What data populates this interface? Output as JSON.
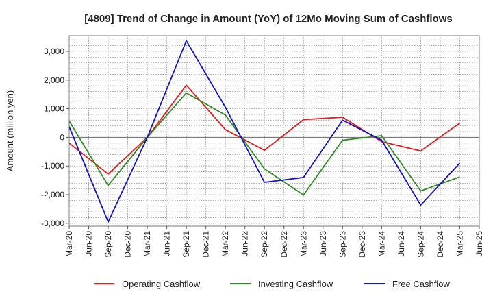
{
  "chart_data": {
    "type": "line",
    "title": "[4809]  Trend of Change in Amount (YoY) of 12Mo Moving Sum of Cashflows",
    "xlabel": "",
    "ylabel": "Amount (million yen)",
    "ylim": [
      -3100,
      3550
    ],
    "yticks": [
      3000,
      2000,
      1000,
      0,
      -1000,
      -2000,
      -3000
    ],
    "ytick_labels": [
      "3,000",
      "2,000",
      "1,000",
      "0",
      "-1,000",
      "-2,000",
      "-3,000"
    ],
    "categories": [
      "Mar-20",
      "Jun-20",
      "Sep-20",
      "Dec-20",
      "Mar-21",
      "Jun-21",
      "Sep-21",
      "Dec-21",
      "Mar-22",
      "Jun-22",
      "Sep-22",
      "Dec-22",
      "Mar-23",
      "Jun-23",
      "Sep-23",
      "Dec-23",
      "Mar-24",
      "Jun-24",
      "Sep-24",
      "Dec-24",
      "Mar-25",
      "Jun-25"
    ],
    "grid": true,
    "legend_position": "bottom",
    "series": [
      {
        "name": "Operating Cashflow",
        "color": "#e41a1c",
        "values": [
          -200,
          null,
          -1280,
          null,
          0,
          null,
          1820,
          null,
          270,
          null,
          -450,
          null,
          620,
          null,
          700,
          null,
          -150,
          null,
          -470,
          null,
          500,
          null
        ]
      },
      {
        "name": "Investing Cashflow",
        "color": "#2e8b23",
        "values": [
          570,
          null,
          -1680,
          null,
          0,
          null,
          1550,
          null,
          780,
          null,
          -1100,
          null,
          -2010,
          null,
          -100,
          null,
          60,
          null,
          -1870,
          null,
          -1380,
          null
        ]
      },
      {
        "name": "Free Cashflow",
        "color": "#1010cc",
        "values": [
          370,
          null,
          -2950,
          null,
          0,
          null,
          3370,
          null,
          1050,
          null,
          -1570,
          null,
          -1400,
          null,
          600,
          null,
          -100,
          null,
          -2360,
          null,
          -900,
          null
        ]
      }
    ]
  }
}
